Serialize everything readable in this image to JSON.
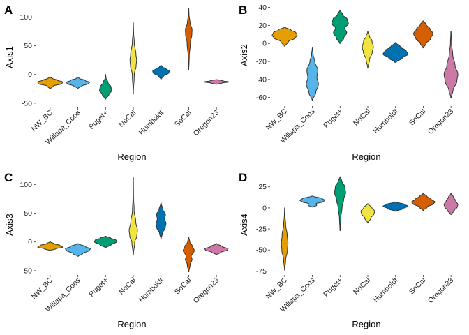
{
  "chart_data": [
    {
      "type": "violin",
      "panel_label": "A",
      "xlabel": "Region",
      "ylabel": "Axis1",
      "ylim": [
        -55,
        115
      ],
      "yticks": [
        -50,
        0,
        50,
        100
      ],
      "categories": [
        "NW_BC",
        "Willapa_Coos",
        "Puget+",
        "NoCal",
        "Humboldt",
        "SoCal",
        "Oregon23"
      ],
      "colors": [
        "#E69F00",
        "#56B4E9",
        "#009E73",
        "#F0E442",
        "#0072B2",
        "#D55E00",
        "#CC79A7"
      ],
      "violins": [
        {
          "min": -25,
          "max": -5,
          "mode": -15,
          "halfwidth": 0.45,
          "shape": [
            [
              -25,
              0.03
            ],
            [
              -20,
              0.25
            ],
            [
              -16,
              0.95
            ],
            [
              -13,
              1.0
            ],
            [
              -10,
              0.6
            ],
            [
              -7,
              0.2
            ],
            [
              -5,
              0.03
            ]
          ]
        },
        {
          "min": -24,
          "max": -5,
          "mode": -15,
          "halfwidth": 0.42,
          "shape": [
            [
              -24,
              0.03
            ],
            [
              -20,
              0.35
            ],
            [
              -16,
              0.9
            ],
            [
              -14,
              1.0
            ],
            [
              -10,
              0.6
            ],
            [
              -7,
              0.15
            ],
            [
              -5,
              0.03
            ]
          ]
        },
        {
          "min": -43,
          "max": 0,
          "mode": -25,
          "halfwidth": 0.22,
          "shape": [
            [
              -43,
              0.03
            ],
            [
              -35,
              0.55
            ],
            [
              -28,
              1.0
            ],
            [
              -22,
              0.9
            ],
            [
              -14,
              0.4
            ],
            [
              -6,
              0.08
            ],
            [
              0,
              0.02
            ]
          ]
        },
        {
          "min": -33,
          "max": 90,
          "mode": 25,
          "halfwidth": 0.12,
          "shape": [
            [
              -33,
              0.02
            ],
            [
              0,
              0.3
            ],
            [
              15,
              0.85
            ],
            [
              25,
              1.0
            ],
            [
              35,
              0.8
            ],
            [
              55,
              0.3
            ],
            [
              75,
              0.08
            ],
            [
              90,
              0.02
            ]
          ]
        },
        {
          "min": -8,
          "max": 16,
          "mode": 6,
          "halfwidth": 0.3,
          "shape": [
            [
              -8,
              0.03
            ],
            [
              -3,
              0.3
            ],
            [
              3,
              0.95
            ],
            [
              6,
              1.0
            ],
            [
              10,
              0.6
            ],
            [
              13,
              0.2
            ],
            [
              16,
              0.03
            ]
          ]
        },
        {
          "min": 8,
          "max": 115,
          "mode": 75,
          "halfwidth": 0.12,
          "shape": [
            [
              8,
              0.02
            ],
            [
              30,
              0.15
            ],
            [
              55,
              0.5
            ],
            [
              70,
              0.95
            ],
            [
              78,
              1.0
            ],
            [
              90,
              0.4
            ],
            [
              105,
              0.08
            ],
            [
              115,
              0.02
            ]
          ]
        },
        {
          "min": -17,
          "max": -9,
          "mode": -13,
          "halfwidth": 0.45,
          "shape": [
            [
              -17,
              0.05
            ],
            [
              -15,
              0.45
            ],
            [
              -13,
              1.0
            ],
            [
              -11,
              0.5
            ],
            [
              -9,
              0.05
            ]
          ]
        }
      ]
    },
    {
      "type": "violin",
      "panel_label": "B",
      "xlabel": "Region",
      "ylabel": "Axis2",
      "ylim": [
        -68,
        42
      ],
      "yticks": [
        -60,
        -40,
        -20,
        0,
        20,
        40
      ],
      "categories": [
        "NW_BC",
        "Willapa_Coos",
        "Puget+",
        "NoCal",
        "Humboldt",
        "SoCal",
        "Oregon23"
      ],
      "colors": [
        "#E69F00",
        "#56B4E9",
        "#009E73",
        "#F0E442",
        "#0072B2",
        "#D55E00",
        "#CC79A7"
      ],
      "violins": [
        {
          "min": -3,
          "max": 18,
          "mode": 9,
          "halfwidth": 0.45,
          "shape": [
            [
              -3,
              0.03
            ],
            [
              2,
              0.3
            ],
            [
              6,
              0.85
            ],
            [
              9,
              1.0
            ],
            [
              12,
              0.9
            ],
            [
              15,
              0.5
            ],
            [
              18,
              0.03
            ]
          ]
        },
        {
          "min": -63,
          "max": -5,
          "mode": -45,
          "halfwidth": 0.22,
          "shape": [
            [
              -63,
              0.03
            ],
            [
              -55,
              0.55
            ],
            [
              -45,
              1.0
            ],
            [
              -38,
              0.75
            ],
            [
              -30,
              0.9
            ],
            [
              -20,
              0.4
            ],
            [
              -12,
              0.12
            ],
            [
              -5,
              0.02
            ]
          ]
        },
        {
          "min": 0,
          "max": 37,
          "mode": 20,
          "halfwidth": 0.3,
          "shape": [
            [
              0,
              0.03
            ],
            [
              6,
              0.45
            ],
            [
              12,
              0.8
            ],
            [
              17,
              0.55
            ],
            [
              22,
              1.0
            ],
            [
              27,
              0.85
            ],
            [
              32,
              0.3
            ],
            [
              37,
              0.03
            ]
          ]
        },
        {
          "min": -27,
          "max": 13,
          "mode": -5,
          "halfwidth": 0.2,
          "shape": [
            [
              -27,
              0.03
            ],
            [
              -18,
              0.3
            ],
            [
              -10,
              0.8
            ],
            [
              -4,
              1.0
            ],
            [
              3,
              0.75
            ],
            [
              8,
              0.3
            ],
            [
              13,
              0.03
            ]
          ]
        },
        {
          "min": -21,
          "max": 1,
          "mode": -12,
          "halfwidth": 0.45,
          "shape": [
            [
              -21,
              0.05
            ],
            [
              -16,
              0.55
            ],
            [
              -12,
              1.0
            ],
            [
              -8,
              0.85
            ],
            [
              -4,
              0.4
            ],
            [
              1,
              0.03
            ]
          ]
        },
        {
          "min": -5,
          "max": 25,
          "mode": 11,
          "halfwidth": 0.35,
          "shape": [
            [
              -5,
              0.03
            ],
            [
              0,
              0.3
            ],
            [
              5,
              0.75
            ],
            [
              11,
              1.0
            ],
            [
              16,
              0.7
            ],
            [
              21,
              0.3
            ],
            [
              25,
              0.03
            ]
          ]
        },
        {
          "min": -60,
          "max": 13,
          "mode": -33,
          "halfwidth": 0.25,
          "shape": [
            [
              -60,
              0.03
            ],
            [
              -52,
              0.3
            ],
            [
              -42,
              0.85
            ],
            [
              -34,
              1.0
            ],
            [
              -25,
              0.6
            ],
            [
              -12,
              0.25
            ],
            [
              0,
              0.08
            ],
            [
              13,
              0.02
            ]
          ]
        }
      ]
    },
    {
      "type": "violin",
      "panel_label": "C",
      "xlabel": "Region",
      "ylabel": "Axis3",
      "ylim": [
        -55,
        115
      ],
      "yticks": [
        -50,
        0,
        50,
        100
      ],
      "categories": [
        "NW_BC",
        "Willapa_Coos",
        "Puget+",
        "NoCal",
        "Humboldt",
        "SoCal",
        "Oregon23"
      ],
      "colors": [
        "#E69F00",
        "#56B4E9",
        "#009E73",
        "#F0E442",
        "#0072B2",
        "#D55E00",
        "#CC79A7"
      ],
      "violins": [
        {
          "min": -15,
          "max": 0,
          "mode": -8,
          "halfwidth": 0.45,
          "shape": [
            [
              -15,
              0.03
            ],
            [
              -12,
              0.45
            ],
            [
              -9,
              1.0
            ],
            [
              -6,
              0.8
            ],
            [
              -3,
              0.3
            ],
            [
              0,
              0.03
            ]
          ]
        },
        {
          "min": -25,
          "max": -3,
          "mode": -13,
          "halfwidth": 0.45,
          "shape": [
            [
              -25,
              0.03
            ],
            [
              -20,
              0.4
            ],
            [
              -15,
              0.9
            ],
            [
              -12,
              1.0
            ],
            [
              -8,
              0.6
            ],
            [
              -3,
              0.03
            ]
          ]
        },
        {
          "min": -10,
          "max": 10,
          "mode": 1,
          "halfwidth": 0.4,
          "shape": [
            [
              -10,
              0.03
            ],
            [
              -5,
              0.5
            ],
            [
              0,
              1.0
            ],
            [
              3,
              0.95
            ],
            [
              7,
              0.45
            ],
            [
              10,
              0.03
            ]
          ]
        },
        {
          "min": -23,
          "max": 112,
          "mode": 20,
          "halfwidth": 0.15,
          "shape": [
            [
              -23,
              0.02
            ],
            [
              0,
              0.35
            ],
            [
              10,
              0.85
            ],
            [
              20,
              1.0
            ],
            [
              35,
              0.6
            ],
            [
              55,
              0.2
            ],
            [
              80,
              0.05
            ],
            [
              112,
              0.02
            ]
          ]
        },
        {
          "min": 6,
          "max": 68,
          "mode": 35,
          "halfwidth": 0.18,
          "shape": [
            [
              6,
              0.03
            ],
            [
              15,
              0.3
            ],
            [
              25,
              0.85
            ],
            [
              32,
              1.0
            ],
            [
              40,
              0.75
            ],
            [
              48,
              0.9
            ],
            [
              56,
              0.4
            ],
            [
              68,
              0.03
            ]
          ]
        },
        {
          "min": -52,
          "max": 8,
          "mode": -15,
          "halfwidth": 0.2,
          "shape": [
            [
              -52,
              0.03
            ],
            [
              -40,
              0.25
            ],
            [
              -30,
              0.6
            ],
            [
              -25,
              0.45
            ],
            [
              -15,
              1.0
            ],
            [
              -8,
              0.7
            ],
            [
              0,
              0.2
            ],
            [
              8,
              0.03
            ]
          ]
        },
        {
          "min": -22,
          "max": -3,
          "mode": -13,
          "halfwidth": 0.42,
          "shape": [
            [
              -22,
              0.03
            ],
            [
              -18,
              0.4
            ],
            [
              -14,
              0.95
            ],
            [
              -12,
              1.0
            ],
            [
              -8,
              0.5
            ],
            [
              -3,
              0.03
            ]
          ]
        }
      ]
    },
    {
      "type": "violin",
      "panel_label": "D",
      "xlabel": "Region",
      "ylabel": "Axis4",
      "ylim": [
        -78,
        38
      ],
      "yticks": [
        -75,
        -50,
        -25,
        0,
        25
      ],
      "categories": [
        "NW_BC",
        "Willapa_Coos",
        "Puget+",
        "NoCal",
        "Humboldt",
        "SoCal",
        "Oregon23"
      ],
      "colors": [
        "#E69F00",
        "#56B4E9",
        "#009E73",
        "#F0E442",
        "#0072B2",
        "#D55E00",
        "#CC79A7"
      ],
      "violins": [
        {
          "min": -74,
          "max": 0,
          "mode": -45,
          "halfwidth": 0.12,
          "shape": [
            [
              -74,
              0.02
            ],
            [
              -62,
              0.3
            ],
            [
              -50,
              0.85
            ],
            [
              -42,
              1.0
            ],
            [
              -32,
              0.75
            ],
            [
              -20,
              0.3
            ],
            [
              -8,
              0.08
            ],
            [
              0,
              0.02
            ]
          ]
        },
        {
          "min": 1,
          "max": 14,
          "mode": 9,
          "halfwidth": 0.45,
          "shape": [
            [
              1,
              0.05
            ],
            [
              3,
              0.35
            ],
            [
              5,
              0.3
            ],
            [
              7,
              0.8
            ],
            [
              9,
              1.0
            ],
            [
              11,
              0.8
            ],
            [
              14,
              0.05
            ]
          ]
        },
        {
          "min": -27,
          "max": 37,
          "mode": 20,
          "halfwidth": 0.2,
          "shape": [
            [
              -27,
              0.02
            ],
            [
              -12,
              0.12
            ],
            [
              0,
              0.35
            ],
            [
              10,
              0.65
            ],
            [
              18,
              1.0
            ],
            [
              25,
              0.85
            ],
            [
              32,
              0.3
            ],
            [
              37,
              0.02
            ]
          ]
        },
        {
          "min": -18,
          "max": 5,
          "mode": -6,
          "halfwidth": 0.25,
          "shape": [
            [
              -18,
              0.03
            ],
            [
              -12,
              0.45
            ],
            [
              -7,
              0.9
            ],
            [
              -4,
              1.0
            ],
            [
              0,
              0.6
            ],
            [
              5,
              0.03
            ]
          ]
        },
        {
          "min": -4,
          "max": 7,
          "mode": 2,
          "halfwidth": 0.45,
          "shape": [
            [
              -4,
              0.05
            ],
            [
              -1,
              0.6
            ],
            [
              2,
              1.0
            ],
            [
              4,
              0.75
            ],
            [
              7,
              0.05
            ]
          ]
        },
        {
          "min": -3,
          "max": 17,
          "mode": 7,
          "halfwidth": 0.42,
          "shape": [
            [
              -3,
              0.03
            ],
            [
              1,
              0.35
            ],
            [
              5,
              0.9
            ],
            [
              7,
              1.0
            ],
            [
              10,
              0.7
            ],
            [
              14,
              0.3
            ],
            [
              17,
              0.03
            ]
          ]
        },
        {
          "min": -8,
          "max": 17,
          "mode": 4,
          "halfwidth": 0.25,
          "shape": [
            [
              -8,
              0.03
            ],
            [
              -3,
              0.5
            ],
            [
              1,
              0.9
            ],
            [
              4,
              1.0
            ],
            [
              8,
              0.7
            ],
            [
              13,
              0.35
            ],
            [
              17,
              0.03
            ]
          ]
        }
      ]
    }
  ]
}
